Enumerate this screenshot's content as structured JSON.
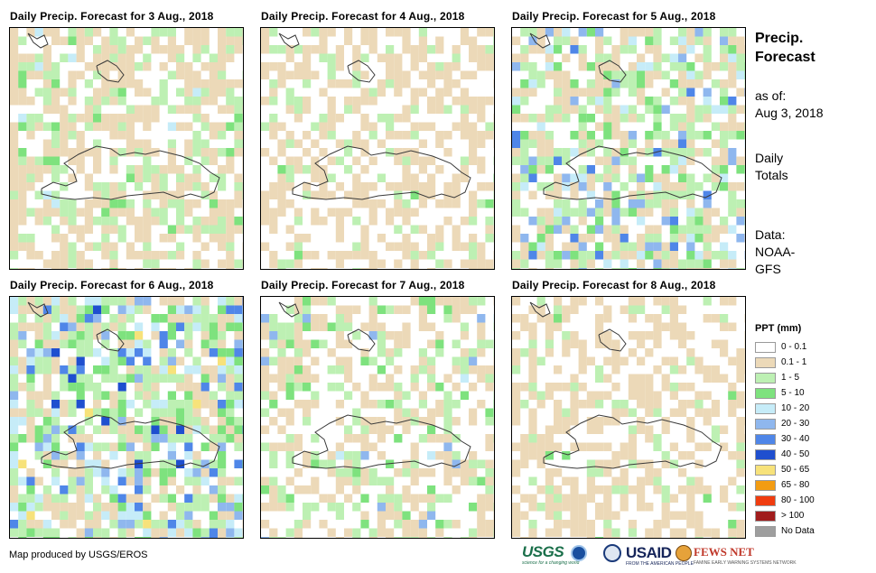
{
  "panels": [
    {
      "title": "Daily Precip. Forecast for 3 Aug., 2018"
    },
    {
      "title": "Daily Precip. Forecast for 4 Aug., 2018"
    },
    {
      "title": "Daily Precip. Forecast for 5 Aug., 2018"
    },
    {
      "title": "Daily Precip. Forecast for 6 Aug., 2018"
    },
    {
      "title": "Daily Precip. Forecast for 7 Aug., 2018"
    },
    {
      "title": "Daily Precip. Forecast for 8 Aug., 2018"
    }
  ],
  "sidebar": {
    "title_line1": "Precip.",
    "title_line2": "Forecast",
    "asof_label": "as of:",
    "asof_date": "Aug 3, 2018",
    "totals_line1": "Daily",
    "totals_line2": "Totals",
    "data_label": "Data:",
    "data_line1": "NOAA-",
    "data_line2": "GFS"
  },
  "legend": {
    "title": "PPT (mm)",
    "items": [
      {
        "label": "0 - 0.1",
        "color": "#ffffff"
      },
      {
        "label": "0.1 - 1",
        "color": "#ecd9b8"
      },
      {
        "label": "1 - 5",
        "color": "#bdf0b3"
      },
      {
        "label": "5 - 10",
        "color": "#7ee27e"
      },
      {
        "label": "10 - 20",
        "color": "#c6ecf8"
      },
      {
        "label": "20 - 30",
        "color": "#8fb7ee"
      },
      {
        "label": "30 - 40",
        "color": "#4f86e8"
      },
      {
        "label": "40 - 50",
        "color": "#1f4fcf"
      },
      {
        "label": "50 - 65",
        "color": "#f7e27a"
      },
      {
        "label": "65 - 80",
        "color": "#f39c12"
      },
      {
        "label": "80 - 100",
        "color": "#f03c0f"
      },
      {
        "label": "> 100",
        "color": "#a01c1c"
      },
      {
        "label": "No Data",
        "color": "#9e9e9e"
      }
    ]
  },
  "credit": "Map produced by USGS/EROS",
  "logos": {
    "usgs": "USGS",
    "usgs_tagline": "science for a changing world",
    "usaid": "USAID",
    "usaid_tagline": "FROM THE AMERICAN PEOPLE",
    "fews": "FEWS NET",
    "fews_tagline": "FAMINE EARLY WARNING SYSTEMS NETWORK"
  }
}
